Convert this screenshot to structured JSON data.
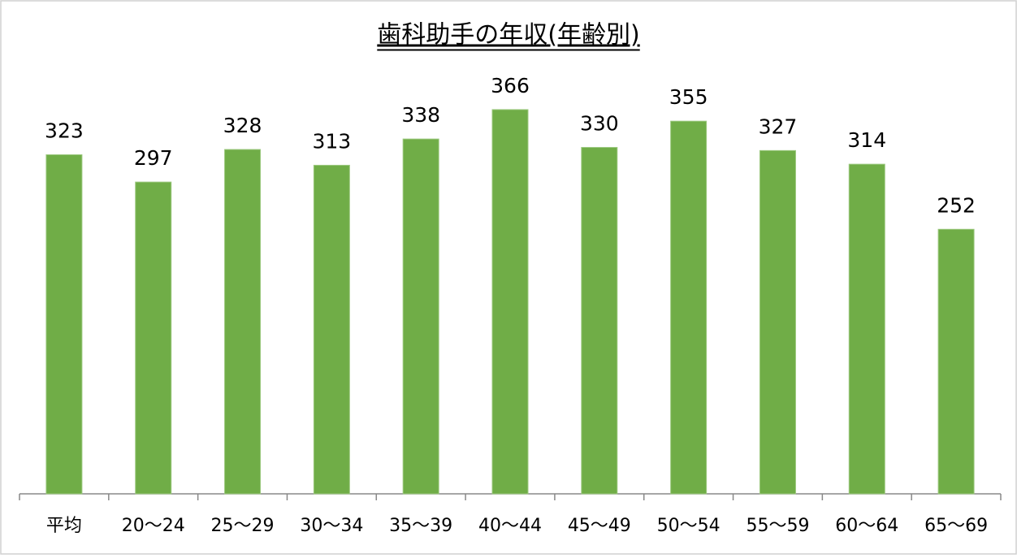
{
  "chart_data": {
    "type": "bar",
    "title": "歯科助手の年収(年齢別)",
    "categories": [
      "平均",
      "20～24",
      "25～29",
      "30～34",
      "35～39",
      "40～44",
      "45～49",
      "50～54",
      "55～59",
      "60～64",
      "65～69"
    ],
    "values": [
      323,
      297,
      328,
      313,
      338,
      366,
      330,
      355,
      327,
      314,
      252
    ],
    "color": "#70ad47",
    "ylim": [
      0,
      400
    ]
  }
}
